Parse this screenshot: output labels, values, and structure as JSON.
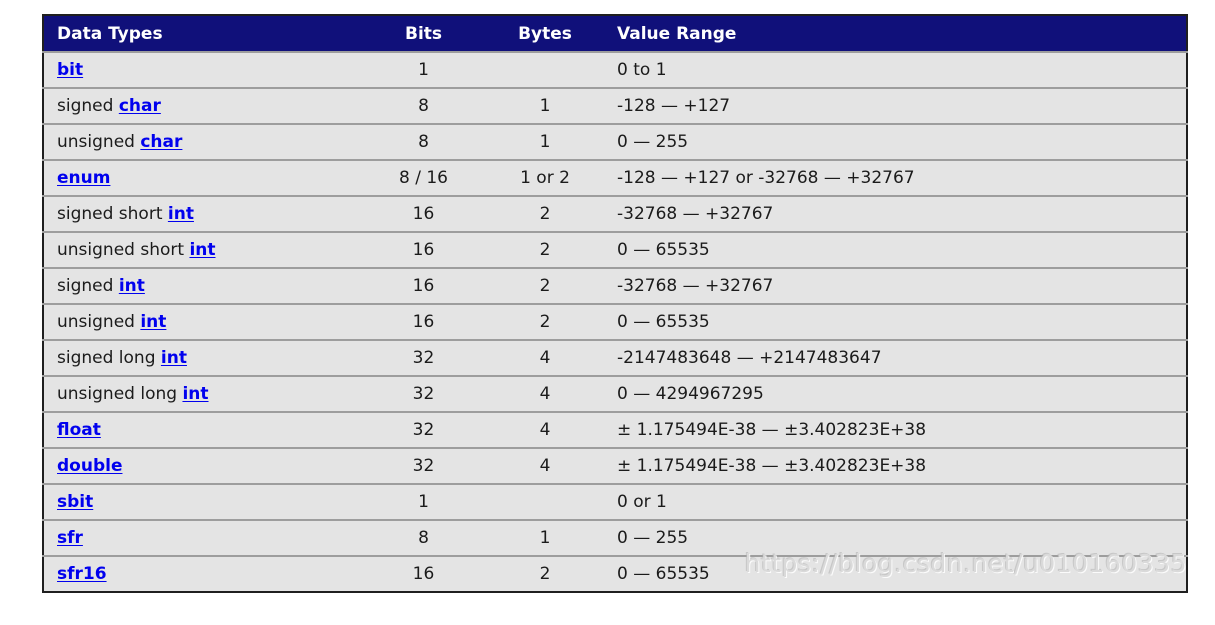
{
  "table": {
    "columns": [
      "Data Types",
      "Bits",
      "Bytes",
      "Value Range"
    ],
    "rows": [
      {
        "prefix": "",
        "link": "bit",
        "bits": "1",
        "bytes": "",
        "range": "0 to 1"
      },
      {
        "prefix": "signed ",
        "link": "char",
        "bits": "8",
        "bytes": "1",
        "range": "-128 — +127"
      },
      {
        "prefix": "unsigned ",
        "link": "char",
        "bits": "8",
        "bytes": "1",
        "range": "0 — 255"
      },
      {
        "prefix": "",
        "link": "enum",
        "bits": "8 / 16",
        "bytes": "1 or 2",
        "range": "-128 — +127 or -32768 — +32767"
      },
      {
        "prefix": "signed short ",
        "link": "int",
        "bits": "16",
        "bytes": "2",
        "range": "-32768 — +32767"
      },
      {
        "prefix": "unsigned short ",
        "link": "int",
        "bits": "16",
        "bytes": "2",
        "range": "0 — 65535"
      },
      {
        "prefix": "signed ",
        "link": "int",
        "bits": "16",
        "bytes": "2",
        "range": "-32768 — +32767"
      },
      {
        "prefix": "unsigned ",
        "link": "int",
        "bits": "16",
        "bytes": "2",
        "range": "0 — 65535"
      },
      {
        "prefix": "signed long ",
        "link": "int",
        "bits": "32",
        "bytes": "4",
        "range": "-2147483648 — +2147483647"
      },
      {
        "prefix": "unsigned long ",
        "link": "int",
        "bits": "32",
        "bytes": "4",
        "range": "0 — 4294967295"
      },
      {
        "prefix": "",
        "link": "float",
        "bits": "32",
        "bytes": "4",
        "range": "± 1.175494E-38 — ±3.402823E+38"
      },
      {
        "prefix": "",
        "link": "double",
        "bits": "32",
        "bytes": "4",
        "range": "± 1.175494E-38 — ±3.402823E+38"
      },
      {
        "prefix": "",
        "link": "sbit",
        "bits": "1",
        "bytes": "",
        "range": "0 or 1"
      },
      {
        "prefix": "",
        "link": "sfr",
        "bits": "8",
        "bytes": "1",
        "range": "0 — 255"
      },
      {
        "prefix": "",
        "link": "sfr16",
        "bits": "16",
        "bytes": "2",
        "range": "0 — 65535"
      }
    ]
  },
  "watermark": {
    "text": "https://blog.csdn.net/u010160335"
  },
  "colors": {
    "header_bg": "#10107a",
    "header_text": "#ffffff",
    "row_bg": "#e4e4e4",
    "row_divider": "#9d9d9d",
    "link": "#0101ee",
    "body_text": "#1b1b1b",
    "table_border": "#1f1f1f",
    "watermark_text": "#dadada"
  }
}
